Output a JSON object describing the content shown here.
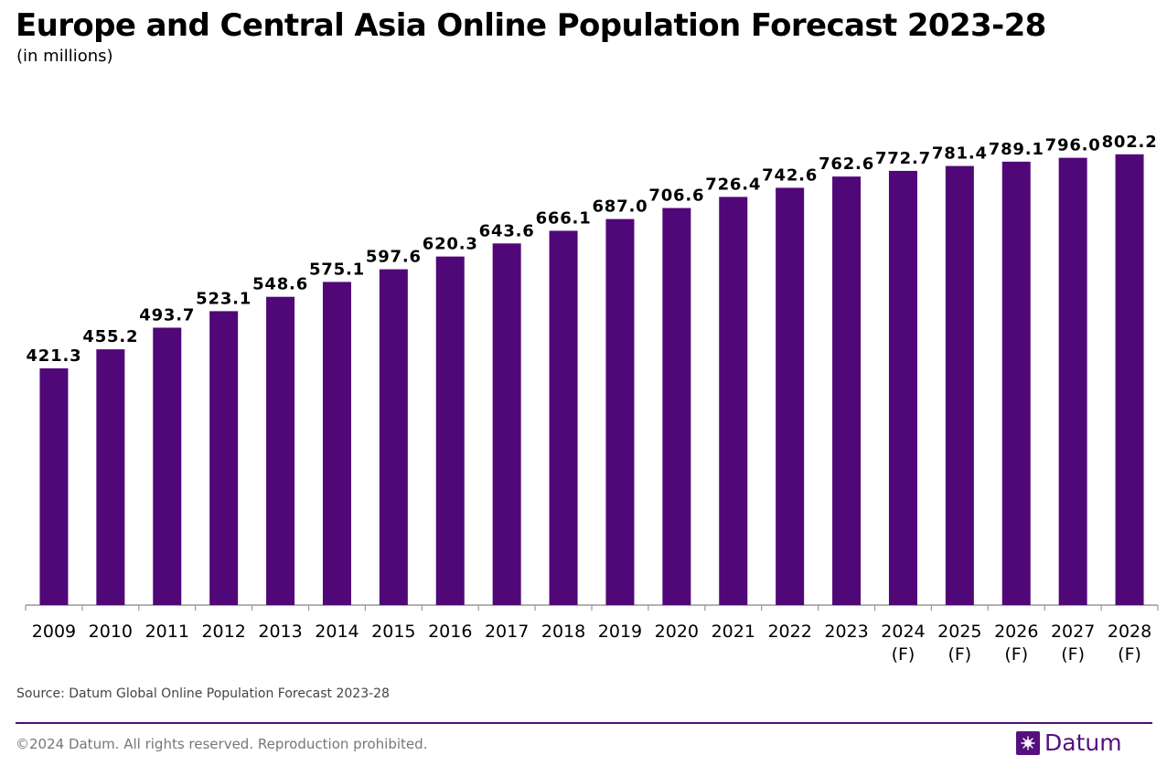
{
  "header": {
    "title": "Europe and Central Asia Online Population Forecast 2023-28",
    "subtitle": "(in millions)"
  },
  "chart_data": {
    "type": "bar",
    "title": "Europe and Central Asia Online Population Forecast 2023-28",
    "subtitle": "(in millions)",
    "xlabel": "",
    "ylabel": "",
    "ylim": [
      0,
      850
    ],
    "grid": false,
    "categories": [
      "2009",
      "2010",
      "2011",
      "2012",
      "2013",
      "2014",
      "2015",
      "2016",
      "2017",
      "2018",
      "2019",
      "2020",
      "2021",
      "2022",
      "2023",
      "2024\n(F)",
      "2025\n(F)",
      "2026\n(F)",
      "2027\n(F)",
      "2028\n(F)"
    ],
    "values": [
      421.3,
      455.2,
      493.7,
      523.1,
      548.6,
      575.1,
      597.6,
      620.3,
      643.6,
      666.1,
      687.0,
      706.6,
      726.4,
      742.6,
      762.6,
      772.7,
      781.4,
      789.1,
      796.0,
      802.2
    ],
    "value_labels": [
      "421.3",
      "455.2",
      "493.7",
      "523.1",
      "548.6",
      "575.1",
      "597.6",
      "620.3",
      "643.6",
      "666.1",
      "687.0",
      "706.6",
      "726.4",
      "742.6",
      "762.6",
      "772.7",
      "781.4",
      "789.1",
      "796.0",
      "802.2"
    ],
    "bar_color": "#500778"
  },
  "footer": {
    "source": "Source: Datum Global Online Population Forecast 2023-28",
    "copyright": "©2024 Datum. All rights reserved. Reproduction prohibited.",
    "brand": "Datum",
    "brand_icon": "datum-logo-icon",
    "accent_color": "#54107c"
  }
}
